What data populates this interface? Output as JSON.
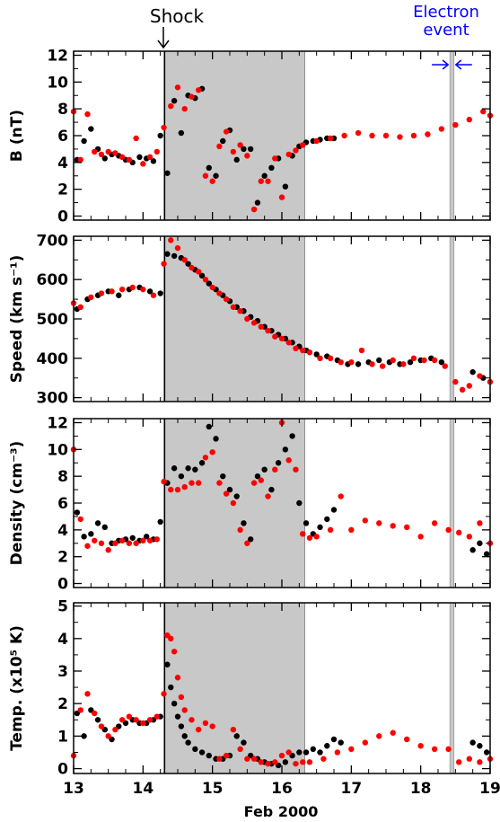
{
  "figure": {
    "shock_label": "Shock",
    "electron_event_label_1": "Electron",
    "electron_event_label_2": "event",
    "x_axis_label": "Feb 2000",
    "colors": {
      "series_a": "#000000",
      "series_b": "#ff0000",
      "shade": "#c8c8c8",
      "event_marker": "#0000ff"
    }
  },
  "chart_data": [
    {
      "type": "scatter",
      "ylabel": "B (nT)",
      "ylabel_html_parts": [
        "B (nT)"
      ],
      "xlim": [
        13,
        19
      ],
      "ylim": [
        -0.3,
        12.3
      ],
      "x_ticks": [
        "13",
        "14",
        "15",
        "16",
        "17",
        "18",
        "19"
      ],
      "y_ticks": [
        0,
        2,
        4,
        6,
        8,
        10,
        12
      ],
      "shaded_regions": [
        [
          14.31,
          16.33
        ],
        [
          18.42,
          18.48
        ]
      ],
      "vertical_lines": [
        14.31,
        16.33
      ],
      "series": [
        {
          "color": "black",
          "x": [
            13.05,
            13.15,
            13.25,
            13.35,
            13.45,
            13.55,
            13.65,
            13.75,
            13.85,
            13.95,
            14.05,
            14.15,
            14.25,
            14.35,
            14.45,
            14.55,
            14.65,
            14.75,
            14.85,
            14.95,
            15.05,
            15.15,
            15.25,
            15.35,
            15.45,
            15.55,
            15.65,
            15.75,
            15.85,
            15.95,
            16.05,
            16.15,
            16.25,
            16.35,
            16.45,
            16.55,
            16.65,
            16.75
          ],
          "y": [
            4.2,
            5.6,
            6.5,
            5.0,
            4.3,
            4.6,
            4.5,
            4.2,
            4.0,
            4.4,
            4.3,
            4.1,
            6.0,
            3.2,
            8.6,
            6.2,
            9.0,
            8.8,
            9.5,
            3.6,
            3.0,
            5.6,
            6.4,
            4.2,
            5.0,
            5.0,
            1.0,
            3.0,
            3.6,
            4.3,
            2.2,
            4.5,
            5.2,
            5.5,
            5.6,
            5.7,
            5.8,
            5.8
          ]
        },
        {
          "color": "red",
          "x": [
            13.0,
            13.1,
            13.2,
            13.3,
            13.4,
            13.5,
            13.6,
            13.7,
            13.8,
            13.9,
            14.0,
            14.1,
            14.2,
            14.3,
            14.4,
            14.5,
            14.6,
            14.7,
            14.8,
            14.9,
            15.0,
            15.1,
            15.2,
            15.3,
            15.4,
            15.5,
            15.6,
            15.7,
            15.8,
            15.9,
            16.0,
            16.1,
            16.2,
            16.3,
            16.5,
            16.7,
            16.9,
            17.1,
            17.3,
            17.5,
            17.7,
            17.9,
            18.1,
            18.3,
            18.5,
            18.7,
            18.9,
            19.0
          ],
          "y": [
            7.8,
            4.2,
            7.6,
            4.8,
            4.6,
            4.8,
            4.7,
            4.4,
            4.2,
            5.8,
            3.9,
            4.4,
            4.8,
            6.6,
            8.2,
            9.6,
            8.0,
            8.9,
            9.4,
            3.0,
            2.6,
            5.2,
            6.3,
            4.8,
            5.3,
            4.5,
            0.5,
            2.6,
            2.6,
            4.3,
            1.4,
            4.6,
            4.9,
            5.3,
            5.6,
            5.8,
            6.0,
            6.2,
            6.0,
            6.0,
            5.9,
            6.0,
            6.1,
            6.5,
            6.8,
            7.2,
            7.8,
            7.5
          ]
        }
      ]
    },
    {
      "type": "scatter",
      "ylabel": "Speed (km s⁻¹)",
      "xlim": [
        13,
        19
      ],
      "ylim": [
        290,
        710
      ],
      "x_ticks": [
        "13",
        "14",
        "15",
        "16",
        "17",
        "18",
        "19"
      ],
      "y_ticks": [
        300,
        400,
        500,
        600,
        700
      ],
      "shaded_regions": [
        [
          14.31,
          16.33
        ],
        [
          18.42,
          18.48
        ]
      ],
      "vertical_lines": [
        14.31,
        16.33
      ],
      "series": [
        {
          "color": "black",
          "x": [
            13.05,
            13.2,
            13.35,
            13.5,
            13.65,
            13.8,
            13.95,
            14.1,
            14.25,
            14.35,
            14.45,
            14.55,
            14.65,
            14.75,
            14.85,
            14.95,
            15.05,
            15.15,
            15.25,
            15.35,
            15.45,
            15.55,
            15.65,
            15.75,
            15.85,
            15.95,
            16.05,
            16.15,
            16.25,
            16.35,
            16.5,
            16.65,
            16.8,
            16.95,
            17.1,
            17.25,
            17.4,
            17.55,
            17.7,
            17.85,
            18.0,
            18.15,
            18.3,
            18.75,
            18.9
          ],
          "y": [
            525,
            550,
            560,
            570,
            560,
            575,
            580,
            570,
            565,
            665,
            660,
            655,
            640,
            625,
            610,
            590,
            575,
            560,
            545,
            530,
            520,
            505,
            495,
            480,
            470,
            460,
            450,
            440,
            430,
            420,
            410,
            405,
            395,
            385,
            385,
            390,
            395,
            390,
            385,
            390,
            395,
            400,
            390,
            365,
            350
          ]
        },
        {
          "color": "red",
          "x": [
            13.0,
            13.1,
            13.25,
            13.4,
            13.55,
            13.7,
            13.85,
            14.0,
            14.15,
            14.3,
            14.4,
            14.5,
            14.6,
            14.7,
            14.8,
            14.9,
            15.0,
            15.1,
            15.2,
            15.3,
            15.4,
            15.5,
            15.6,
            15.7,
            15.8,
            15.9,
            16.0,
            16.1,
            16.2,
            16.3,
            16.4,
            16.55,
            16.7,
            16.85,
            17.0,
            17.15,
            17.3,
            17.45,
            17.6,
            17.75,
            17.9,
            18.05,
            18.2,
            18.35,
            18.5,
            18.6,
            18.7,
            18.85,
            19.0
          ],
          "y": [
            540,
            530,
            555,
            565,
            570,
            575,
            580,
            575,
            560,
            640,
            700,
            680,
            650,
            630,
            620,
            600,
            580,
            565,
            550,
            530,
            520,
            500,
            490,
            480,
            470,
            455,
            450,
            440,
            425,
            420,
            415,
            400,
            400,
            390,
            390,
            420,
            385,
            380,
            395,
            385,
            400,
            395,
            395,
            380,
            340,
            320,
            330,
            355,
            340
          ]
        }
      ]
    },
    {
      "type": "scatter",
      "ylabel": "Density (cm⁻³)",
      "xlim": [
        13,
        19
      ],
      "ylim": [
        -0.3,
        12.3
      ],
      "x_ticks": [
        "13",
        "14",
        "15",
        "16",
        "17",
        "18",
        "19"
      ],
      "y_ticks": [
        0,
        2,
        4,
        6,
        8,
        10,
        12
      ],
      "shaded_regions": [
        [
          14.31,
          16.33
        ],
        [
          18.42,
          18.48
        ]
      ],
      "vertical_lines": [
        14.31,
        16.33
      ],
      "series": [
        {
          "color": "black",
          "x": [
            13.05,
            13.15,
            13.25,
            13.35,
            13.45,
            13.55,
            13.65,
            13.75,
            13.85,
            13.95,
            14.05,
            14.15,
            14.25,
            14.35,
            14.45,
            14.55,
            14.65,
            14.75,
            14.85,
            14.95,
            15.05,
            15.15,
            15.25,
            15.35,
            15.45,
            15.55,
            15.65,
            15.75,
            15.85,
            15.95,
            16.05,
            16.15,
            16.25,
            16.35,
            16.45,
            16.55,
            16.65,
            16.75,
            18.75,
            18.85,
            18.95
          ],
          "y": [
            5.3,
            3.5,
            3.7,
            4.5,
            4.2,
            3.0,
            3.2,
            3.3,
            3.4,
            3.2,
            3.5,
            3.3,
            4.6,
            7.5,
            8.6,
            8.0,
            8.6,
            8.5,
            9.0,
            11.7,
            10.8,
            8.0,
            7.0,
            6.5,
            4.5,
            3.3,
            8.0,
            8.5,
            7.0,
            9.0,
            10.0,
            11.0,
            6.0,
            4.5,
            3.7,
            4.2,
            4.8,
            5.5,
            2.5,
            3.0,
            2.2
          ]
        },
        {
          "color": "red",
          "x": [
            13.0,
            13.1,
            13.2,
            13.3,
            13.4,
            13.5,
            13.6,
            13.7,
            13.8,
            13.9,
            14.0,
            14.1,
            14.2,
            14.3,
            14.4,
            14.5,
            14.6,
            14.7,
            14.8,
            14.9,
            15.0,
            15.1,
            15.2,
            15.3,
            15.4,
            15.5,
            15.6,
            15.7,
            15.8,
            15.9,
            16.0,
            16.1,
            16.2,
            16.3,
            16.4,
            16.5,
            16.7,
            16.85,
            17.0,
            17.2,
            17.4,
            17.6,
            17.8,
            18.0,
            18.2,
            18.4,
            18.55,
            18.7,
            18.85,
            19.0
          ],
          "y": [
            10.0,
            4.8,
            2.8,
            3.2,
            3.0,
            2.5,
            3.0,
            3.2,
            3.0,
            3.0,
            3.2,
            3.2,
            3.3,
            7.6,
            7.0,
            7.0,
            7.2,
            7.5,
            7.5,
            9.4,
            9.8,
            7.5,
            6.7,
            6.0,
            4.0,
            3.0,
            7.5,
            7.7,
            6.5,
            8.5,
            12.0,
            9.2,
            8.5,
            3.7,
            3.4,
            3.5,
            4.0,
            6.5,
            4.0,
            4.7,
            4.5,
            4.3,
            4.2,
            3.5,
            4.5,
            4.0,
            3.8,
            3.5,
            4.5,
            3.0
          ]
        }
      ]
    },
    {
      "type": "scatter",
      "ylabel": "Temp. (x10⁵ K)",
      "xlim": [
        13,
        19
      ],
      "ylim": [
        -0.15,
        5.1
      ],
      "x_ticks": [
        "13",
        "14",
        "15",
        "16",
        "17",
        "18",
        "19"
      ],
      "y_ticks": [
        0,
        1,
        2,
        3,
        4,
        5
      ],
      "xlabel": "Feb 2000",
      "shaded_regions": [
        [
          14.31,
          16.33
        ],
        [
          18.42,
          18.48
        ]
      ],
      "vertical_lines": [
        14.31,
        16.33
      ],
      "series": [
        {
          "color": "black",
          "x": [
            13.05,
            13.15,
            13.25,
            13.35,
            13.45,
            13.55,
            13.65,
            13.75,
            13.85,
            13.95,
            14.05,
            14.15,
            14.25,
            14.35,
            14.4,
            14.45,
            14.5,
            14.55,
            14.6,
            14.65,
            14.75,
            14.85,
            14.95,
            15.05,
            15.15,
            15.25,
            15.35,
            15.45,
            15.55,
            15.65,
            15.75,
            15.85,
            15.95,
            16.05,
            16.15,
            16.25,
            16.35,
            16.45,
            16.55,
            16.65,
            16.75,
            16.85,
            18.75,
            18.85,
            18.95
          ],
          "y": [
            1.7,
            1.0,
            1.8,
            1.5,
            1.2,
            0.9,
            1.3,
            1.4,
            1.5,
            1.4,
            1.4,
            1.5,
            1.6,
            3.2,
            2.5,
            2.0,
            1.6,
            1.3,
            1.0,
            0.8,
            0.6,
            0.5,
            0.4,
            0.3,
            0.3,
            0.4,
            1.0,
            0.8,
            0.4,
            0.3,
            0.2,
            0.15,
            0.1,
            0.2,
            0.4,
            0.5,
            0.5,
            0.6,
            0.5,
            0.7,
            0.9,
            0.8,
            0.8,
            0.7,
            0.5
          ]
        },
        {
          "color": "red",
          "x": [
            13.0,
            13.1,
            13.2,
            13.3,
            13.4,
            13.5,
            13.6,
            13.7,
            13.8,
            13.9,
            14.0,
            14.1,
            14.2,
            14.3,
            14.35,
            14.4,
            14.45,
            14.5,
            14.55,
            14.6,
            14.7,
            14.8,
            14.9,
            15.0,
            15.1,
            15.2,
            15.3,
            15.4,
            15.5,
            15.6,
            15.7,
            15.8,
            15.9,
            16.0,
            16.1,
            16.2,
            16.3,
            16.4,
            16.6,
            16.8,
            17.0,
            17.2,
            17.4,
            17.6,
            17.8,
            18.0,
            18.2,
            18.4,
            18.55,
            18.7,
            18.85,
            19.0
          ],
          "y": [
            0.4,
            1.8,
            2.3,
            1.7,
            1.3,
            1.0,
            1.2,
            1.5,
            1.6,
            1.5,
            1.4,
            1.5,
            1.6,
            2.3,
            4.1,
            4.0,
            3.6,
            2.8,
            2.2,
            1.8,
            1.5,
            1.2,
            1.4,
            1.3,
            0.3,
            0.4,
            1.2,
            0.6,
            0.3,
            0.3,
            0.2,
            0.15,
            0.2,
            0.4,
            0.5,
            0.15,
            0.2,
            0.2,
            0.3,
            0.5,
            0.6,
            0.8,
            1.0,
            1.1,
            0.9,
            0.7,
            0.6,
            0.6,
            0.2,
            0.3,
            0.2,
            0.3
          ]
        }
      ]
    }
  ]
}
